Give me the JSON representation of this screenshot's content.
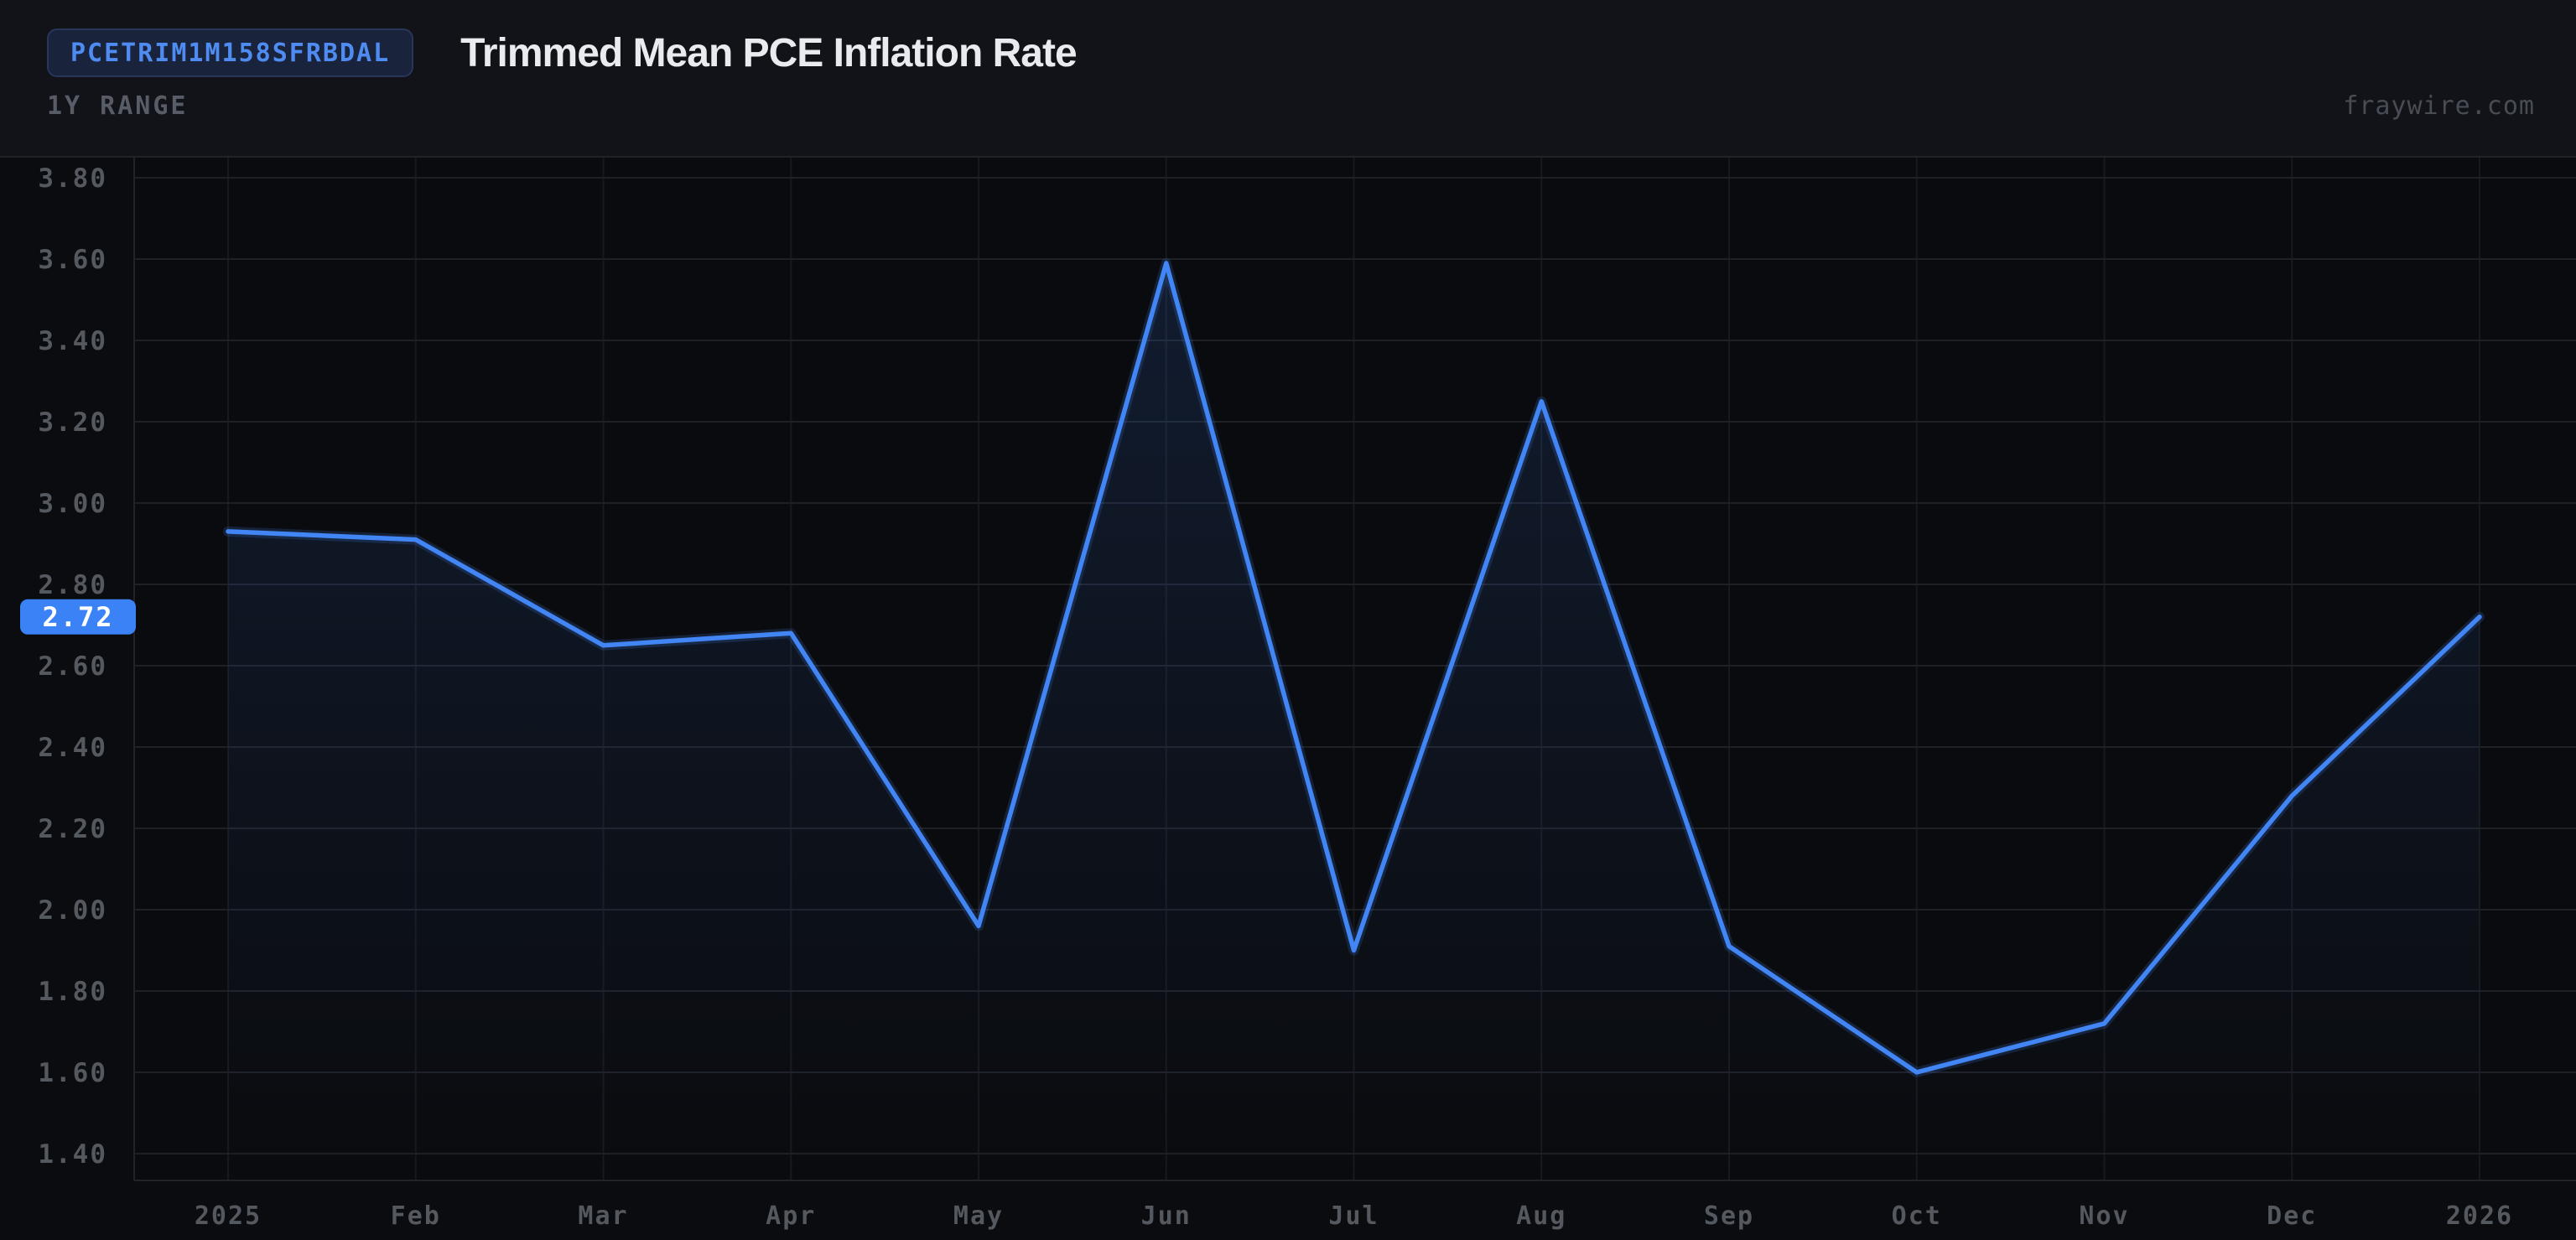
{
  "header": {
    "ticker": "PCETRIM1M158SFRBDAL",
    "title": "Trimmed Mean PCE Inflation Rate",
    "range_label": "1Y RANGE",
    "watermark": "fraywire.com"
  },
  "colors": {
    "accent_line": "#4285f5",
    "chip_bg": "#3b82f6",
    "chip_text": "#ffffff",
    "badge_bg": "#19233c",
    "badge_border": "#283659",
    "badge_text": "#4f8cf2",
    "title_text": "#e9ebee",
    "range_text": "#585c66",
    "watermark_text": "#484c55",
    "axis_text": "#54585f",
    "grid_horizontal": "#1e2026",
    "grid_vertical": "#17191e",
    "plot_border": "#212329",
    "header_bg": "#121318",
    "plot_bg": "#0a0b0e",
    "chart_region_bg": "#0b0c10",
    "area_fill_top": "rgba(62,128,242,0.16)",
    "area_fill_bottom": "rgba(62,128,242,0)"
  },
  "chart_data": {
    "type": "line",
    "title": "Trimmed Mean PCE Inflation Rate",
    "xlabel": "",
    "ylabel": "",
    "x_labels": [
      "2025",
      "Feb",
      "Mar",
      "Apr",
      "May",
      "Jun",
      "Jul",
      "Aug",
      "Sep",
      "Oct",
      "Nov",
      "Dec",
      "2026"
    ],
    "series": [
      {
        "name": "PCETRIM1M158SFRBDAL",
        "values": [
          2.93,
          2.91,
          2.65,
          2.68,
          1.96,
          3.59,
          1.9,
          3.25,
          1.91,
          1.6,
          1.72,
          2.28,
          2.72
        ]
      }
    ],
    "y_axis": {
      "min": 1.4,
      "max": 3.8,
      "step": 0.2,
      "decimals": 2
    },
    "ylim": [
      1.33,
      3.85
    ],
    "grid": true,
    "legend_position": "none",
    "current_value": 2.72,
    "current_value_label": "2.72"
  }
}
